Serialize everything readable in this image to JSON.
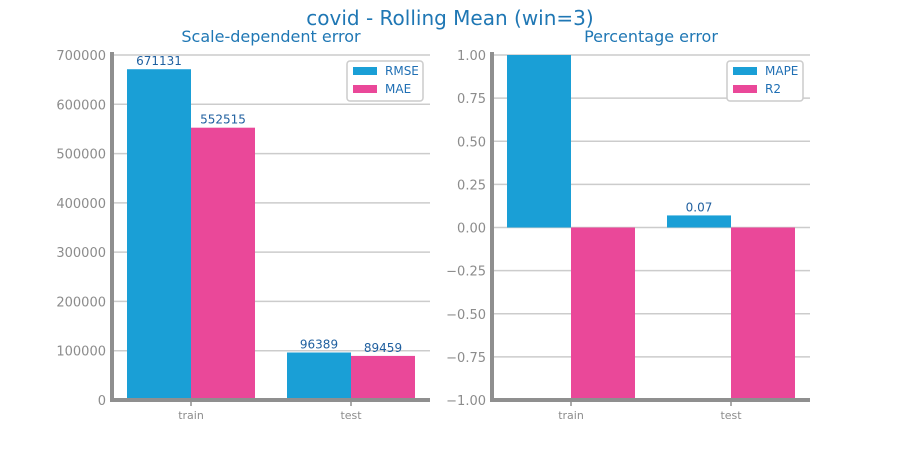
{
  "figure_title": "covid - Rolling Mean (win=3)",
  "colors": {
    "series_1": "#1a9fd6",
    "series_2": "#ea4899"
  },
  "chart_data": [
    {
      "type": "bar",
      "title": "Scale-dependent error",
      "categories": [
        "train",
        "test"
      ],
      "series": [
        {
          "name": "RMSE",
          "values": [
            671131,
            96389
          ]
        },
        {
          "name": "MAE",
          "values": [
            552515,
            89459
          ]
        }
      ],
      "data_labels": [
        [
          "671131",
          "96389"
        ],
        [
          "552515",
          "89459"
        ]
      ],
      "ylim": [
        0,
        700000
      ],
      "yticks": [
        0,
        100000,
        200000,
        300000,
        400000,
        500000,
        600000,
        700000
      ],
      "ytick_labels": [
        "0",
        "100000",
        "200000",
        "300000",
        "400000",
        "500000",
        "600000",
        "700000"
      ],
      "grid": true,
      "legend": "top-right"
    },
    {
      "type": "bar",
      "title": "Percentage error",
      "categories": [
        "train",
        "test"
      ],
      "series": [
        {
          "name": "MAPE",
          "values": [
            1.0,
            0.07
          ]
        },
        {
          "name": "R2",
          "values": [
            -1.0,
            -1.0
          ]
        }
      ],
      "data_labels": [
        [
          "",
          "0.07"
        ],
        [
          "",
          ""
        ]
      ],
      "ylim": [
        -1.0,
        1.0
      ],
      "yticks": [
        -1.0,
        -0.75,
        -0.5,
        -0.25,
        0.0,
        0.25,
        0.5,
        0.75,
        1.0
      ],
      "ytick_labels": [
        "−1.00",
        "−0.75",
        "−0.50",
        "−0.25",
        "0.00",
        "0.25",
        "0.50",
        "0.75",
        "1.00"
      ],
      "grid": true,
      "legend": "top-right"
    }
  ]
}
